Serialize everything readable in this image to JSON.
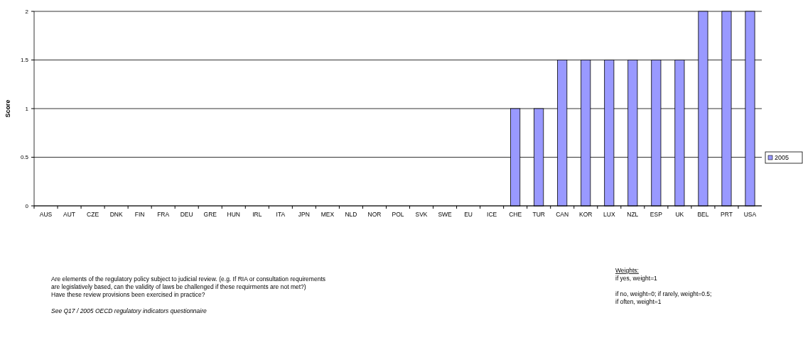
{
  "chart_data": {
    "type": "bar",
    "ylabel": "Score",
    "categories": [
      "AUS",
      "AUT",
      "CZE",
      "DNK",
      "FIN",
      "FRA",
      "DEU",
      "GRE",
      "HUN",
      "IRL",
      "ITA",
      "JPN",
      "MEX",
      "NLD",
      "NOR",
      "POL",
      "SVK",
      "SWE",
      "EU",
      "ICE",
      "CHE",
      "TUR",
      "CAN",
      "KOR",
      "LUX",
      "NZL",
      "ESP",
      "UK",
      "BEL",
      "PRT",
      "USA"
    ],
    "series": [
      {
        "name": "2005",
        "color": "#9999ff",
        "values": [
          0,
          0,
          0,
          0,
          0,
          0,
          0,
          0,
          0,
          0,
          0,
          0,
          0,
          0,
          0,
          0,
          0,
          0,
          0,
          0,
          1,
          1,
          1.5,
          1.5,
          1.5,
          1.5,
          1.5,
          1.5,
          2,
          2,
          2
        ]
      }
    ],
    "ylim": [
      0,
      2
    ],
    "yticks": [
      0,
      0.5,
      1,
      1.5,
      2
    ],
    "grid": "y",
    "legend": "right",
    "annotations": [
      "Are elements of the regulatory policy subject to judicial review.  (e.g. If RIA or consultation requirements are legislatively based, can the validity of laws be challenged if these requirments are not met?)",
      "Have these review provisions been exercised in practice?",
      "See Q17 / 2005 OECD regulatory indicators questionnaire",
      "Weights:",
      "if yes, weight=1",
      "if no, weight=0; if rarely, weight=0.5; if often, weight=1"
    ]
  }
}
